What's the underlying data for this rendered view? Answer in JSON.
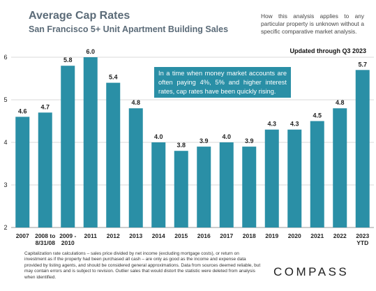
{
  "header": {
    "title": "Average Cap Rates",
    "subtitle": "San Francisco 5+ Unit Apartment Building Sales",
    "disclaimer": "How this analysis applies to any particular property is unknown without a specific comparative market analysis.",
    "updated": "Updated through Q3 2023"
  },
  "callout": {
    "text": "In a time when money market accounts are often paying 4%, 5% and higher interest rates, cap rates have been quickly rising."
  },
  "footnote": {
    "text": "Capitalization rate calculations – sales price divided by net income (excluding mortgage costs), or return on investment as if the property had been purchased all cash – are only as good as the income and expense data provided by listing agents, and should be considered general approximations. Data from sources deemed reliable, but may contain errors and is subject to revision. Outlier sales that would distort the statistic were deleted from analysis when identified."
  },
  "logo": {
    "text": "COMPASS"
  },
  "colors": {
    "bar": "#2a8fa6",
    "grid": "#d9d9d9",
    "title": "#5b6b78"
  },
  "chart_data": {
    "type": "bar",
    "title": "Average Cap Rates",
    "subtitle": "San Francisco 5+ Unit Apartment Building Sales",
    "categories": [
      [
        "2007"
      ],
      [
        "2008 to",
        "8/31/08"
      ],
      [
        "2009 -",
        "2010"
      ],
      [
        "2011"
      ],
      [
        "2012"
      ],
      [
        "2013"
      ],
      [
        "2014"
      ],
      [
        "2015"
      ],
      [
        "2016"
      ],
      [
        "2017"
      ],
      [
        "2018"
      ],
      [
        "2019"
      ],
      [
        "2020"
      ],
      [
        "2021"
      ],
      [
        "2022"
      ],
      [
        "2023",
        "YTD"
      ]
    ],
    "values": [
      4.6,
      4.7,
      5.8,
      6.0,
      5.4,
      4.8,
      4.0,
      3.8,
      3.9,
      4.0,
      3.9,
      4.3,
      4.3,
      4.5,
      4.8,
      5.7
    ],
    "labels": [
      "4.6",
      "4.7",
      "5.8",
      "6.0",
      "5.4",
      "4.8",
      "4.0",
      "3.8",
      "3.9",
      "4.0",
      "3.9",
      "4.3",
      "4.3",
      "4.5",
      "4.8",
      "5.7"
    ],
    "ylim": [
      2,
      6
    ],
    "yticks": [
      2,
      3,
      4,
      5,
      6
    ],
    "grid": true,
    "xlabel": "",
    "ylabel": ""
  }
}
